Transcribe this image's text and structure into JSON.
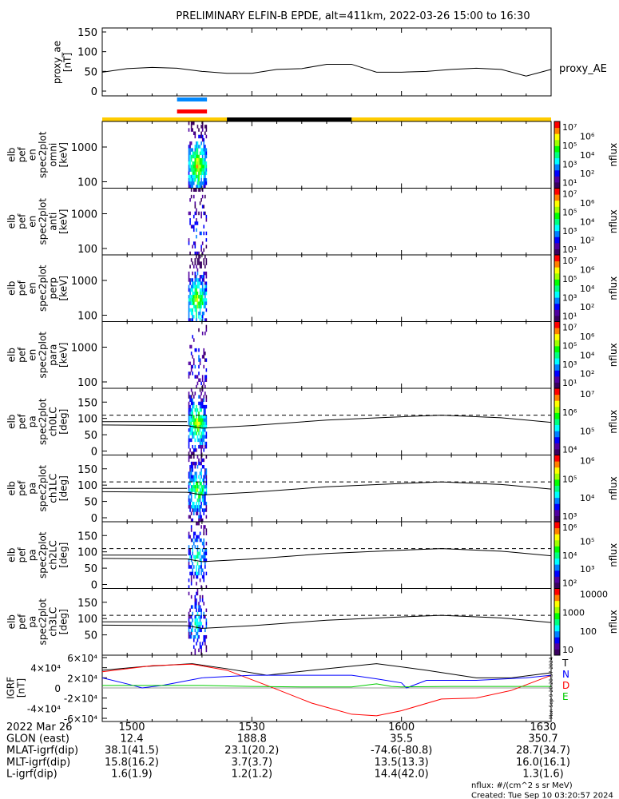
{
  "title": "PRELIMINARY ELFIN-B EPDE, alt=411km, 2022-03-26 15:00 to 16:30",
  "time_range_min": [
    0,
    90
  ],
  "chart_data": [
    {
      "type": "line",
      "name": "proxy_ae",
      "ylabel": [
        "proxy_ae",
        "[nT]"
      ],
      "ylim": [
        0,
        150
      ],
      "yticks": [
        "0",
        "50",
        "100",
        "150"
      ],
      "legend": "proxy_AE",
      "x": [
        0,
        5,
        10,
        15,
        20,
        25,
        30,
        35,
        40,
        45,
        50,
        55,
        60,
        65,
        70,
        75,
        80,
        85,
        90
      ],
      "y": [
        48,
        57,
        60,
        58,
        50,
        45,
        45,
        55,
        57,
        68,
        68,
        48,
        48,
        50,
        55,
        58,
        55,
        38,
        55
      ]
    },
    {
      "type": "heatmap",
      "name": "spectrograms",
      "panels": [
        {
          "ylabel": [
            "elb",
            "pef",
            "en",
            "spec2plot",
            "omni",
            "[keV]"
          ],
          "yticks": [
            "100",
            "1000"
          ],
          "cbar": [
            "10¹",
            "10²",
            "10³",
            "10⁴",
            "10⁵",
            "10⁶",
            "10⁷"
          ],
          "cbar_label": "nflux",
          "density": 1.0
        },
        {
          "ylabel": [
            "elb",
            "pef",
            "en",
            "spec2plot",
            "anti",
            "[keV]"
          ],
          "yticks": [
            "100",
            "1000"
          ],
          "cbar": [
            "10¹",
            "10²",
            "10³",
            "10⁴",
            "10⁵",
            "10⁶",
            "10⁷"
          ],
          "cbar_label": "nflux",
          "density": 0.3
        },
        {
          "ylabel": [
            "elb",
            "pef",
            "en",
            "spec2plot",
            "perp",
            "[keV]"
          ],
          "yticks": [
            "100",
            "1000"
          ],
          "cbar": [
            "10¹",
            "10²",
            "10³",
            "10⁴",
            "10⁵",
            "10⁶",
            "10⁷"
          ],
          "cbar_label": "nflux",
          "density": 0.9
        },
        {
          "ylabel": [
            "elb",
            "pef",
            "en",
            "spec2plot",
            "para",
            "[keV]"
          ],
          "yticks": [
            "100",
            "1000"
          ],
          "cbar": [
            "10¹",
            "10²",
            "10³",
            "10⁴",
            "10⁵",
            "10⁶",
            "10⁷"
          ],
          "cbar_label": "nflux",
          "density": 0.25
        },
        {
          "ylabel": [
            "elb",
            "pef",
            "pa",
            "spec2plot",
            "ch0LC",
            "[deg]"
          ],
          "yticks": [
            "0",
            "50",
            "100",
            "150"
          ],
          "cbar": [
            "10⁴",
            "10⁵",
            "10⁶",
            "10⁷"
          ],
          "cbar_label": "nflux",
          "density": 0.9
        },
        {
          "ylabel": [
            "elb",
            "pef",
            "pa",
            "spec2plot",
            "ch1LC",
            "[deg]"
          ],
          "yticks": [
            "0",
            "50",
            "100",
            "150"
          ],
          "cbar": [
            "10³",
            "10⁴",
            "10⁵",
            "10⁶"
          ],
          "cbar_label": "nflux",
          "density": 0.8
        },
        {
          "ylabel": [
            "elb",
            "pef",
            "pa",
            "spec2plot",
            "ch2LC",
            "[deg]"
          ],
          "yticks": [
            "0",
            "50",
            "100",
            "150"
          ],
          "cbar": [
            "10²",
            "10³",
            "10⁴",
            "10⁵",
            "10⁶"
          ],
          "cbar_label": "nflux",
          "density": 0.6
        },
        {
          "ylabel": [
            "elb",
            "pef",
            "pa",
            "spec2plot",
            "ch3LC",
            "[deg]"
          ],
          "yticks": [
            "50",
            "100",
            "150"
          ],
          "cbar": [
            "10",
            "100",
            "1000",
            "10000"
          ],
          "cbar_label": "nflux",
          "density": 0.5
        }
      ],
      "losscone_deg": {
        "x": [
          0,
          17,
          20,
          30,
          45,
          60,
          68,
          80,
          90
        ],
        "y": [
          80,
          78,
          70,
          78,
          95,
          105,
          110,
          102,
          88
        ]
      },
      "dashed_deg": 110
    },
    {
      "type": "line",
      "name": "IGRF",
      "ylabel": [
        "IGRF",
        "[nT]"
      ],
      "ylim": [
        -60000,
        60000
      ],
      "yticks": [
        "-6×10⁴",
        "-4×10⁴",
        "-2×10⁴",
        "0",
        "2×10⁴",
        "4×10⁴",
        "6×10⁴"
      ],
      "legend": [
        "T",
        "N",
        "D",
        "E"
      ],
      "series": [
        {
          "name": "T",
          "color": "#000000",
          "x": [
            0,
            8,
            18,
            25,
            33,
            42,
            55,
            65,
            75,
            82,
            90
          ],
          "y": [
            35000,
            42000,
            48000,
            38000,
            25000,
            35000,
            48000,
            35000,
            20000,
            20000,
            30000
          ]
        },
        {
          "name": "D",
          "color": "#ff0000",
          "x": [
            0,
            10,
            18,
            25,
            33,
            42,
            50,
            55,
            60,
            68,
            75,
            82,
            90
          ],
          "y": [
            32000,
            44000,
            47000,
            35000,
            5000,
            -30000,
            -52000,
            -55000,
            -45000,
            -22000,
            -20000,
            -5000,
            25000
          ]
        },
        {
          "name": "N",
          "color": "#0000ff",
          "x": [
            0,
            5,
            8,
            12,
            20,
            30,
            40,
            50,
            55,
            60,
            61,
            65,
            75,
            85,
            90
          ],
          "y": [
            20000,
            8000,
            0,
            5000,
            20000,
            25000,
            25000,
            25000,
            18000,
            10000,
            0,
            15000,
            15000,
            20000,
            25000
          ]
        },
        {
          "name": "E",
          "color": "#00cc00",
          "x": [
            0,
            10,
            20,
            30,
            40,
            50,
            55,
            58,
            60,
            70,
            80,
            90
          ],
          "y": [
            5000,
            5000,
            5000,
            3000,
            2000,
            2000,
            8000,
            3000,
            2000,
            3000,
            3000,
            3000
          ]
        }
      ]
    }
  ],
  "coverage_bars": {
    "blue": [
      15,
      21
    ],
    "red": [
      15,
      21
    ],
    "sun": [
      [
        0,
        25
      ],
      [
        50,
        90
      ]
    ],
    "shadow": [
      [
        25,
        50
      ]
    ]
  },
  "colors": {
    "sun": "#ffcc00",
    "shadow": "#000000",
    "blue": "#0088ff",
    "red": "#ff0000"
  },
  "ephemeris": {
    "date": "2022 Mar 26",
    "rows": [
      {
        "label": "GLON (east)",
        "values": [
          "12.4",
          "188.8",
          "35.5",
          "350.7"
        ]
      },
      {
        "label": "MLAT-igrf(dip)",
        "values": [
          "38.1(41.5)",
          "23.1(20.2)",
          "-74.6(-80.8)",
          "28.7(34.7)"
        ]
      },
      {
        "label": "MLT-igrf(dip)",
        "values": [
          "15.8(16.2)",
          "3.7(3.7)",
          "13.5(13.3)",
          "16.0(16.1)"
        ]
      },
      {
        "label": "L-igrf(dip)",
        "values": [
          "1.6(1.9)",
          "1.2(1.2)",
          "14.4(42.0)",
          "1.3(1.6)"
        ]
      }
    ],
    "times": [
      "1500",
      "1530",
      "1600",
      "1630"
    ]
  },
  "footer": {
    "units": "nflux: #/(cm^2 s sr MeV)",
    "created": "Created: Tue Sep 10 03:20:57 2024",
    "side_stamp": "Mon Sep  9 20:20:57 2024"
  }
}
